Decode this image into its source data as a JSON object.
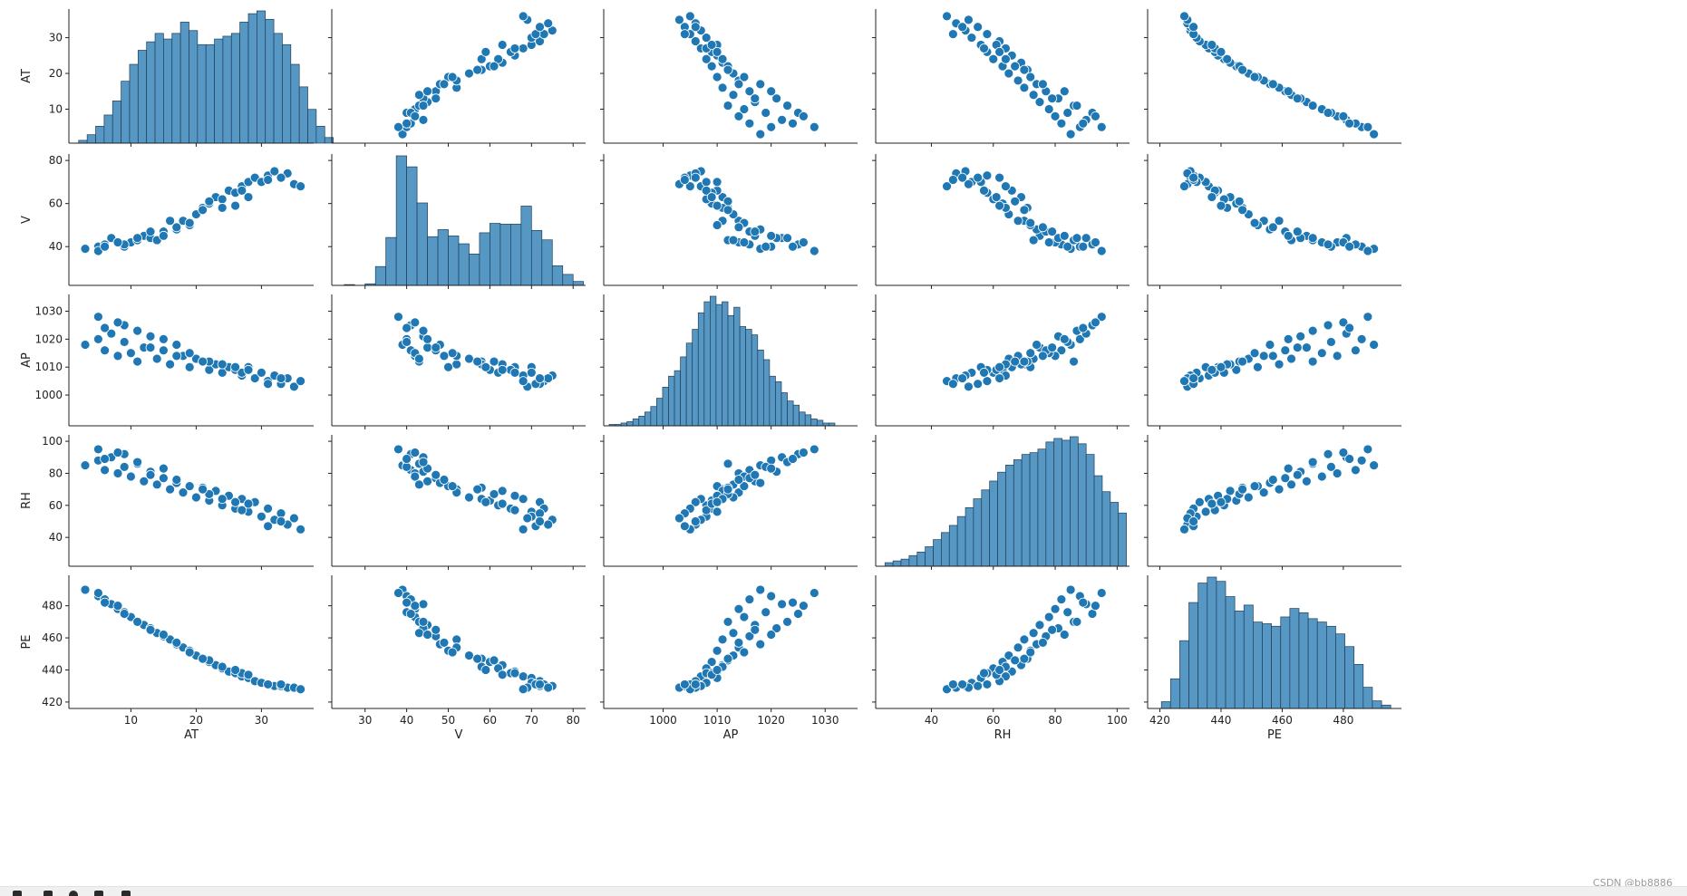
{
  "chart_data": {
    "type": "scatter",
    "kind": "pairplot",
    "variables": [
      "AT",
      "V",
      "AP",
      "RH",
      "PE"
    ],
    "axes": {
      "AT": {
        "lim": [
          0.5,
          38
        ],
        "ticks": [
          10,
          20,
          30
        ]
      },
      "V": {
        "lim": [
          22,
          83
        ],
        "ticks": [
          30,
          40,
          50,
          60,
          70,
          80
        ],
        "ticks_y": [
          40,
          60,
          80
        ]
      },
      "AP": {
        "lim": [
          989,
          1036
        ],
        "ticks": [
          1000,
          1010,
          1020,
          1030
        ]
      },
      "RH": {
        "lim": [
          22,
          104
        ],
        "ticks": [
          40,
          60,
          80,
          100
        ]
      },
      "PE": {
        "lim": [
          416,
          499
        ],
        "ticks": [
          420,
          440,
          460,
          480
        ]
      }
    },
    "histograms": {
      "AT": {
        "bin_start": 2,
        "bin_width": 1.3,
        "counts": [
          1,
          3,
          6,
          10,
          15,
          22,
          28,
          33,
          36,
          39,
          37,
          39,
          43,
          40,
          35,
          35,
          37,
          38,
          39,
          43,
          46,
          47,
          44,
          39,
          35,
          28,
          20,
          12,
          6,
          2
        ]
      },
      "V": {
        "bin_start": 25,
        "bin_width": 2.5,
        "counts": [
          1,
          0,
          2,
          24,
          61,
          165,
          151,
          105,
          62,
          71,
          63,
          53,
          40,
          67,
          79,
          78,
          78,
          101,
          70,
          58,
          25,
          14,
          5
        ]
      },
      "AP": {
        "bin_start": 990,
        "bin_width": 1.1,
        "counts": [
          1,
          1,
          2,
          3,
          5,
          7,
          10,
          14,
          20,
          28,
          36,
          40,
          50,
          60,
          70,
          82,
          90,
          94,
          88,
          90,
          80,
          86,
          72,
          70,
          66,
          55,
          48,
          36,
          32,
          24,
          18,
          15,
          10,
          8,
          5,
          4,
          2,
          2
        ]
      },
      "RH": {
        "bin_start": 25,
        "bin_width": 2.6,
        "counts": [
          2,
          3,
          4,
          6,
          8,
          11,
          15,
          19,
          23,
          28,
          33,
          38,
          43,
          48,
          53,
          57,
          60,
          63,
          64,
          66,
          70,
          72,
          71,
          73,
          69,
          63,
          51,
          42,
          36,
          30
        ]
      },
      "PE": {
        "bin_start": 420.5,
        "bin_width": 3.0,
        "counts": [
          8,
          35,
          80,
          125,
          148,
          155,
          150,
          132,
          115,
          122,
          102,
          100,
          97,
          108,
          118,
          113,
          106,
          102,
          97,
          88,
          73,
          52,
          25,
          9,
          4
        ]
      }
    },
    "points": {
      "AT": [
        3,
        5,
        6,
        7,
        8,
        9,
        10,
        11,
        12,
        13,
        14,
        15,
        16,
        17,
        18,
        19,
        20,
        21,
        22,
        23,
        24,
        25,
        26,
        27,
        28,
        29,
        30,
        31,
        32,
        33,
        34,
        35,
        36,
        9,
        13,
        22,
        27,
        5,
        15,
        24,
        31,
        11,
        19,
        28,
        8,
        17,
        26,
        33,
        6,
        21
      ],
      "V": [
        39,
        40,
        41,
        44,
        42,
        40,
        42,
        43,
        45,
        44,
        43,
        47,
        52,
        48,
        52,
        50,
        55,
        58,
        60,
        63,
        62,
        66,
        65,
        68,
        70,
        72,
        70,
        73,
        75,
        72,
        74,
        69,
        68,
        41,
        47,
        61,
        66,
        38,
        45,
        58,
        71,
        44,
        51,
        63,
        42,
        49,
        59,
        72,
        40,
        57
      ],
      "AP": [
        1018,
        1020,
        1016,
        1022,
        1014,
        1019,
        1015,
        1012,
        1017,
        1021,
        1013,
        1016,
        1011,
        1018,
        1014,
        1010,
        1013,
        1012,
        1009,
        1011,
        1008,
        1010,
        1009,
        1007,
        1010,
        1006,
        1008,
        1005,
        1007,
        1004,
        1006,
        1003,
        1005,
        1025,
        1017,
        1012,
        1008,
        1028,
        1020,
        1011,
        1004,
        1023,
        1015,
        1009,
        1026,
        1014,
        1010,
        1006,
        1024,
        1012
      ],
      "RH": [
        85,
        88,
        82,
        90,
        80,
        84,
        78,
        86,
        75,
        81,
        73,
        77,
        70,
        74,
        68,
        72,
        65,
        71,
        63,
        69,
        60,
        66,
        58,
        64,
        56,
        62,
        53,
        58,
        51,
        55,
        48,
        52,
        45,
        92,
        79,
        67,
        57,
        95,
        83,
        64,
        47,
        87,
        72,
        61,
        93,
        76,
        62,
        50,
        89,
        70
      ],
      "PE": [
        490,
        486,
        484,
        481,
        478,
        476,
        473,
        470,
        468,
        466,
        463,
        461,
        459,
        456,
        454,
        452,
        449,
        447,
        445,
        443,
        441,
        439,
        438,
        436,
        435,
        433,
        432,
        431,
        430,
        430,
        429,
        429,
        428,
        475,
        465,
        446,
        438,
        488,
        462,
        442,
        431,
        470,
        451,
        437,
        480,
        457,
        440,
        431,
        482,
        447
      ]
    }
  },
  "labels": {
    "AT": "AT",
    "V": "V",
    "AP": "AP",
    "RH": "RH",
    "PE": "PE"
  },
  "colors": {
    "point_fill": "#1f77b4",
    "point_edge": "#ffffff",
    "hist_fill": "#5697c4",
    "hist_edge": "#1f3f5a",
    "axis": "#222222"
  },
  "watermark": "CSDN @bb8886"
}
